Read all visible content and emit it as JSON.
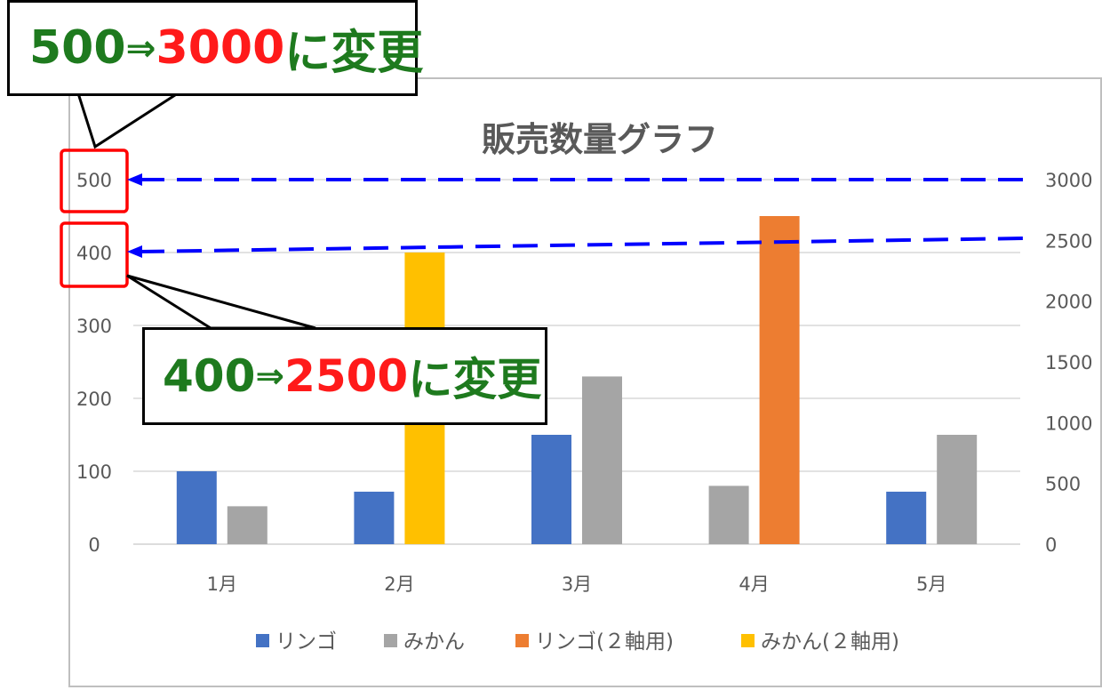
{
  "chart_data": {
    "type": "bar",
    "title": "販売数量グラフ",
    "categories": [
      "1月",
      "2月",
      "3月",
      "4月",
      "5月"
    ],
    "primary_axis": {
      "ticks": [
        "0",
        "100",
        "200",
        "300",
        "400",
        "500"
      ],
      "ylim": [
        0,
        500
      ]
    },
    "secondary_axis": {
      "ticks": [
        "0",
        "500",
        "1000",
        "1500",
        "2000",
        "2500",
        "3000"
      ],
      "ylim": [
        0,
        3000
      ]
    },
    "series": [
      {
        "name": "リンゴ",
        "axis": "primary",
        "color": "#4472c4",
        "values": [
          100,
          72,
          150,
          null,
          72
        ]
      },
      {
        "name": "みかん",
        "axis": "primary",
        "color": "#a5a5a5",
        "values": [
          52,
          null,
          230,
          80,
          150
        ]
      },
      {
        "name": "リンゴ(２軸用)",
        "axis": "secondary",
        "color": "#ed7d31",
        "values": [
          null,
          null,
          null,
          2700,
          null
        ]
      },
      {
        "name": "みかん(２軸用)",
        "axis": "secondary",
        "color": "#ffc000",
        "values": [
          null,
          2400,
          null,
          null,
          null
        ]
      }
    ],
    "legend_position": "bottom",
    "grid": true
  },
  "annotations": {
    "top": {
      "old": "500",
      "arrow": "⇒",
      "new": "3000",
      "suffix": "に変更"
    },
    "middle": {
      "old": "400",
      "arrow": "⇒",
      "new": "2500",
      "suffix": "に変更"
    }
  },
  "colors": {
    "highlight_box": "#ff0000",
    "dashed_arrow": "#0000ff",
    "callout_green": "#1e7a1e",
    "callout_red": "#ff1a1a"
  }
}
